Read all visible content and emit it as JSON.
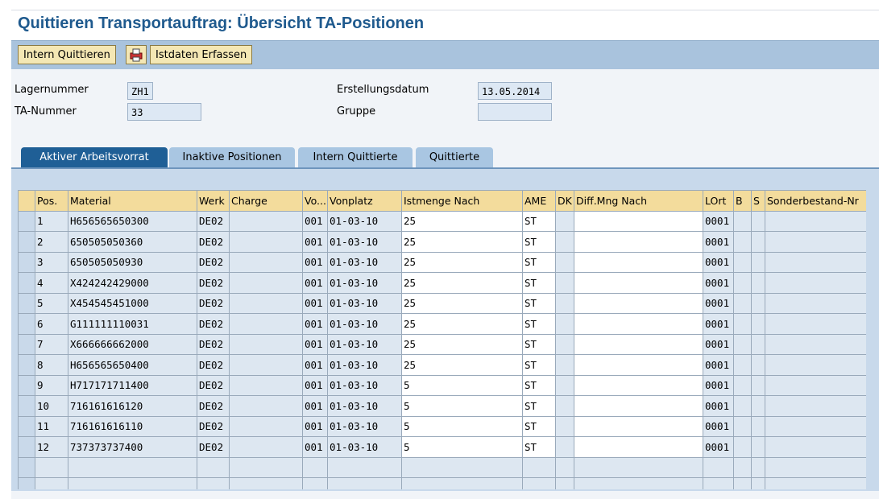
{
  "header": {
    "title": "Quittieren Transportauftrag: Übersicht TA-Positionen"
  },
  "toolbar": {
    "buttons": [
      "Intern Quittieren",
      "Istdaten Erfassen"
    ]
  },
  "fields": [
    {
      "label": "Lagernummer",
      "value": "ZH1"
    },
    {
      "label": "TA-Nummer",
      "value": "33"
    },
    {
      "label": "Erstellungsdatum",
      "value": "13.05.2014"
    },
    {
      "label": "Gruppe"
    }
  ],
  "tabs": [
    "Aktiver Arbeitsvorrat",
    "Inaktive Positionen",
    "Intern Quittierte",
    "Quittierte"
  ],
  "table": {
    "columns": [
      "Pos.",
      "Material",
      "Werk",
      "Charge",
      "Vo...",
      "Vonplatz",
      "Istmenge Nach",
      "AME",
      "DK",
      "Diff.Mng Nach",
      "LOrt",
      "B",
      "S",
      "Sonderbestand-Nr"
    ],
    "rows": [
      [
        "1",
        "H656565650300",
        "DE02",
        null,
        "001",
        "01-03-10",
        "25",
        "ST",
        null,
        null,
        "0001",
        null,
        null,
        null
      ],
      [
        "2",
        "650505050360",
        "DE02",
        null,
        "001",
        "01-03-10",
        "25",
        "ST",
        null,
        null,
        "0001",
        null,
        null,
        null
      ],
      [
        "3",
        "650505050930",
        "DE02",
        null,
        "001",
        "01-03-10",
        "25",
        "ST",
        null,
        null,
        "0001",
        null,
        null,
        null
      ],
      [
        "4",
        "X424242429000",
        "DE02",
        null,
        "001",
        "01-03-10",
        "25",
        "ST",
        null,
        null,
        "0001",
        null,
        null,
        null
      ],
      [
        "5",
        "X454545451000",
        "DE02",
        null,
        "001",
        "01-03-10",
        "25",
        "ST",
        null,
        null,
        "0001",
        null,
        null,
        null
      ],
      [
        "6",
        "G111111110031",
        "DE02",
        null,
        "001",
        "01-03-10",
        "25",
        "ST",
        null,
        null,
        "0001",
        null,
        null,
        null
      ],
      [
        "7",
        "X666666662000",
        "DE02",
        null,
        "001",
        "01-03-10",
        "25",
        "ST",
        null,
        null,
        "0001",
        null,
        null,
        null
      ],
      [
        "8",
        "H656565650400",
        "DE02",
        null,
        "001",
        "01-03-10",
        "25",
        "ST",
        null,
        null,
        "0001",
        null,
        null,
        null
      ],
      [
        "9",
        "H717171711400",
        "DE02",
        null,
        "001",
        "01-03-10",
        "5",
        "ST",
        null,
        null,
        "0001",
        null,
        null,
        null
      ],
      [
        "10",
        "716161616120",
        "DE02",
        null,
        "001",
        "01-03-10",
        "5",
        "ST",
        null,
        null,
        "0001",
        null,
        null,
        null
      ],
      [
        "11",
        "716161616110",
        "DE02",
        null,
        "001",
        "01-03-10",
        "5",
        "ST",
        null,
        null,
        "0001",
        null,
        null,
        null
      ],
      [
        "12",
        "737373737400",
        "DE02",
        null,
        "001",
        "01-03-10",
        "5",
        "ST",
        null,
        null,
        "0001",
        null,
        null,
        null
      ]
    ]
  }
}
